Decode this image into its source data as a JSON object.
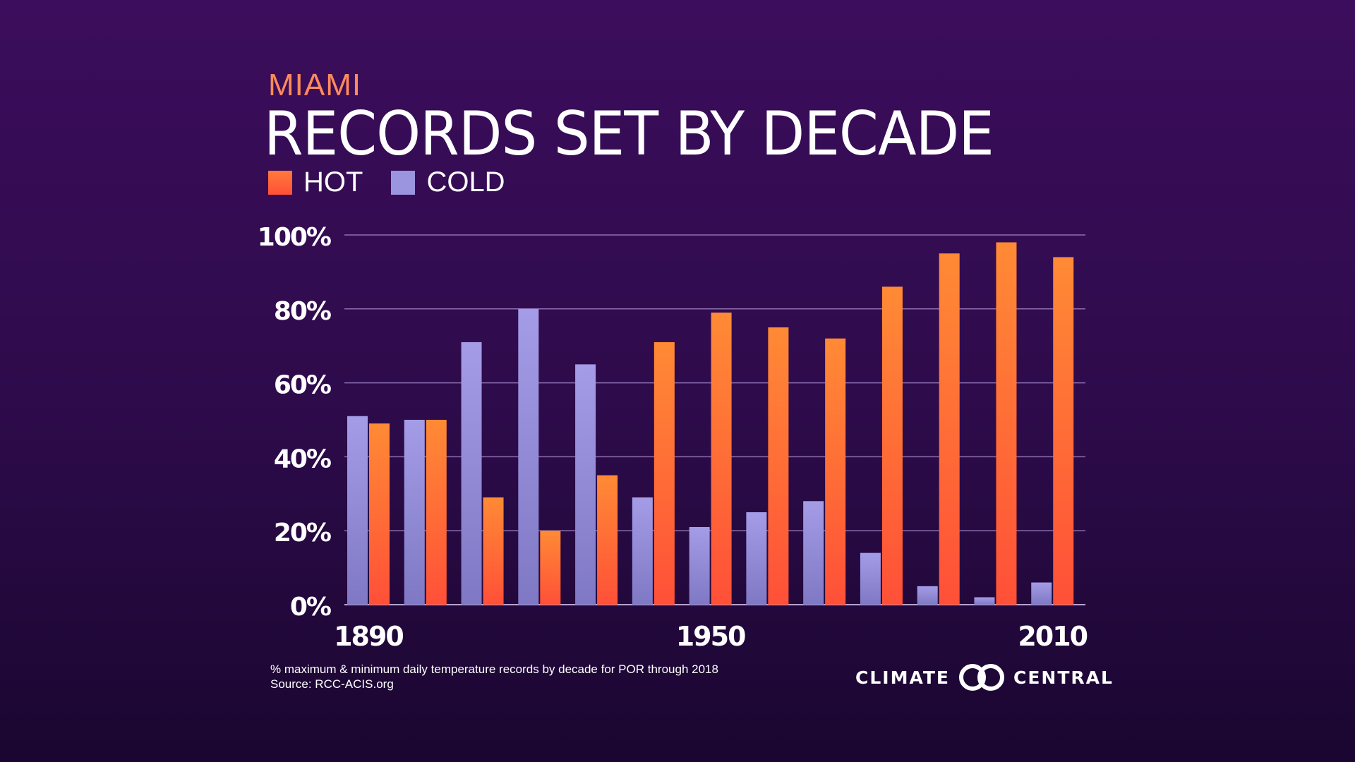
{
  "header": {
    "city": "MIAMI",
    "title": "RECORDS SET BY DECADE"
  },
  "legend": {
    "hot_label": "HOT",
    "cold_label": "COLD"
  },
  "footnote": {
    "line1": "% maximum & minimum daily temperature records by decade for POR through 2018",
    "line2": "Source: RCC-ACIS.org"
  },
  "brand": {
    "left": "CLIMATE",
    "right": "CENTRAL",
    "logo_icon": "interlocking-circles-icon"
  },
  "colors": {
    "hot": "#ff5a3c",
    "hot_top": "#ff8a35",
    "cold": "#9b94de",
    "accent": "#ff8a5c",
    "background": "#3c0d5c"
  },
  "chart_data": {
    "type": "bar",
    "title": "RECORDS SET BY DECADE",
    "categories": [
      "1890",
      "1900",
      "1910",
      "1920",
      "1930",
      "1940",
      "1950",
      "1960",
      "1970",
      "1980",
      "1990",
      "2000",
      "2010"
    ],
    "x_tick_labels": [
      "1890",
      "",
      "",
      "",
      "",
      "",
      "1950",
      "",
      "",
      "",
      "",
      "",
      "2010"
    ],
    "series": [
      {
        "name": "COLD",
        "values": [
          51,
          50,
          71,
          80,
          65,
          29,
          21,
          25,
          28,
          14,
          5,
          2,
          6
        ]
      },
      {
        "name": "HOT",
        "values": [
          49,
          50,
          29,
          20,
          35,
          71,
          79,
          75,
          72,
          86,
          95,
          98,
          94
        ]
      }
    ],
    "y_ticks": [
      "0%",
      "20%",
      "40%",
      "60%",
      "80%",
      "100%"
    ],
    "ylim": [
      0,
      100
    ],
    "grid": true,
    "legend_position": "top-left"
  }
}
